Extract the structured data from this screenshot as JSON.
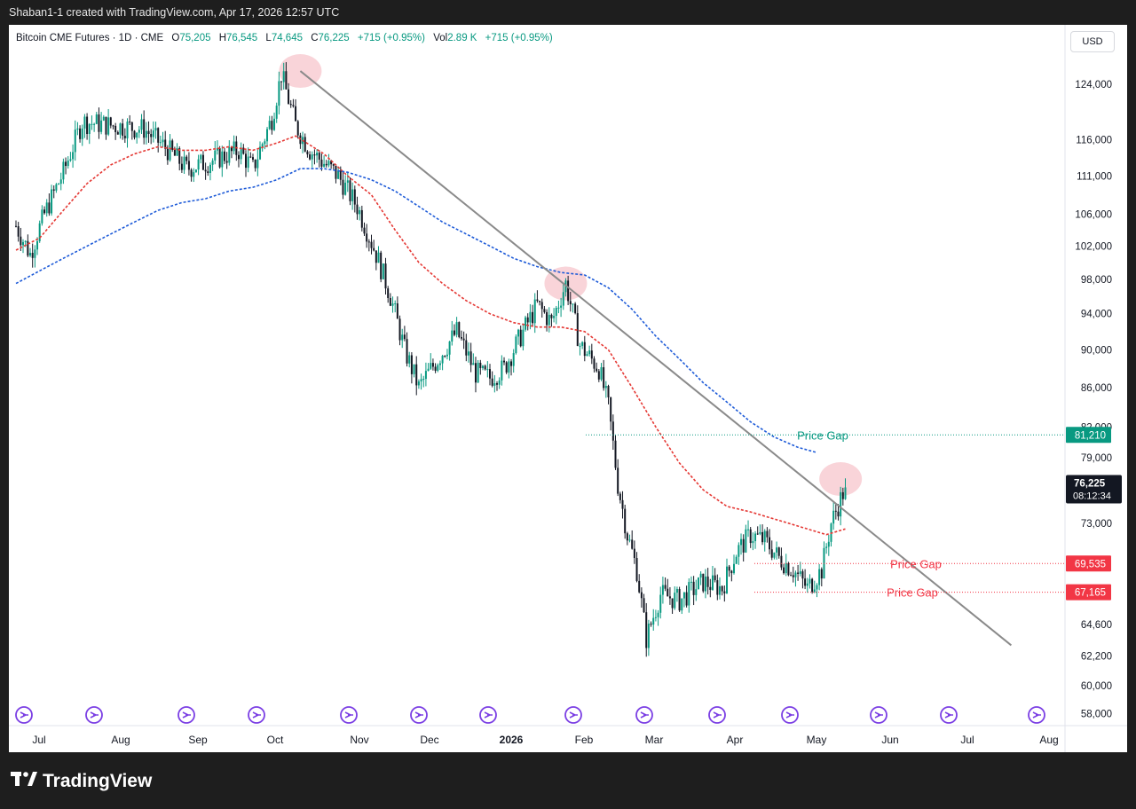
{
  "header": {
    "credit": "Shaban1-1 created with TradingView.com, Apr 17, 2026 12:57 UTC"
  },
  "legend": {
    "symbol": "Bitcoin CME Futures · 1D · CME",
    "o_label": "O",
    "o": "75,205",
    "h_label": "H",
    "h": "76,545",
    "l_label": "L",
    "l": "74,645",
    "c_label": "C",
    "c": "76,225",
    "change": "+715 (+0.95%)",
    "vol_label": "Vol",
    "vol": "2.89 K",
    "vol_change": "+715 (+0.95%)"
  },
  "currency": "USD",
  "footer": {
    "brand": "TradingView",
    "logo_icon": "tradingview-logo-icon"
  },
  "colors": {
    "up": "#089981",
    "down": "#131722",
    "ma_red": "#e53935",
    "ma_blue": "#1e5bd8",
    "trendline": "#8a8a8a",
    "gap_green": "#089981",
    "gap_red": "#f23645",
    "highlight": "#f7c6cc"
  },
  "chart_data": {
    "type": "candlestick",
    "y_scale": "log",
    "y_ticks": [
      124000,
      116000,
      111000,
      106000,
      102000,
      98000,
      94000,
      90000,
      86000,
      82000,
      79000,
      73000,
      64600,
      62200,
      60000,
      58000
    ],
    "y_tick_labels": [
      "124,000",
      "116,000",
      "111,000",
      "106,000",
      "102,000",
      "98,000",
      "94,000",
      "90,000",
      "86,000",
      "82,000",
      "79,000",
      "73,000",
      "64,600",
      "62,200",
      "60,000",
      "58,000"
    ],
    "x_tick_labels": [
      "Jul",
      "Aug",
      "Sep",
      "Oct",
      "Nov",
      "Dec",
      "2026",
      "Feb",
      "Mar",
      "Apr",
      "May",
      "Jun",
      "Jul",
      "Aug"
    ],
    "last_price": {
      "value": 76225,
      "label": "76,225",
      "countdown": "08:12:34"
    },
    "price_gaps": [
      {
        "label": "Price Gap",
        "value": 81210,
        "value_label": "81,210",
        "color": "green"
      },
      {
        "label": "Price Gap",
        "value": 69535,
        "value_label": "69,535",
        "color": "red"
      },
      {
        "label": "Price Gap",
        "value": 67165,
        "value_label": "67,165",
        "color": "red"
      }
    ],
    "series": [
      {
        "kind": "candles",
        "anchors": [
          [
            0,
            104500
          ],
          [
            6,
            101000
          ],
          [
            12,
            106000
          ],
          [
            20,
            111500
          ],
          [
            28,
            118500
          ],
          [
            40,
            118000
          ],
          [
            54,
            117500
          ],
          [
            66,
            114000
          ],
          [
            72,
            112000
          ],
          [
            82,
            113000
          ],
          [
            94,
            114500
          ],
          [
            100,
            112000
          ],
          [
            108,
            119000
          ],
          [
            112,
            125500
          ],
          [
            118,
            118000
          ],
          [
            124,
            114500
          ],
          [
            136,
            111000
          ],
          [
            144,
            107000
          ],
          [
            152,
            101000
          ],
          [
            158,
            96000
          ],
          [
            164,
            90000
          ],
          [
            170,
            86000
          ],
          [
            178,
            89000
          ],
          [
            186,
            92000
          ],
          [
            194,
            87500
          ],
          [
            200,
            87000
          ],
          [
            206,
            88000
          ],
          [
            214,
            92000
          ],
          [
            220,
            95000
          ],
          [
            226,
            93000
          ],
          [
            232,
            97500
          ],
          [
            238,
            90500
          ],
          [
            246,
            88000
          ],
          [
            250,
            84000
          ],
          [
            254,
            76500
          ],
          [
            258,
            72000
          ],
          [
            262,
            69000
          ],
          [
            266,
            63500
          ],
          [
            272,
            67000
          ],
          [
            280,
            66500
          ],
          [
            290,
            68000
          ],
          [
            298,
            67500
          ],
          [
            304,
            70500
          ],
          [
            310,
            72000
          ],
          [
            316,
            71500
          ],
          [
            322,
            70000
          ],
          [
            328,
            69000
          ],
          [
            334,
            67500
          ],
          [
            340,
            69000
          ],
          [
            344,
            73000
          ],
          [
            350,
            76225
          ]
        ]
      },
      {
        "kind": "ma",
        "name": "",
        "color": "red",
        "points": [
          [
            0,
            101500
          ],
          [
            10,
            103000
          ],
          [
            20,
            106500
          ],
          [
            30,
            110000
          ],
          [
            40,
            112500
          ],
          [
            50,
            114000
          ],
          [
            60,
            115000
          ],
          [
            70,
            114500
          ],
          [
            80,
            114500
          ],
          [
            90,
            115000
          ],
          [
            100,
            114500
          ],
          [
            110,
            115500
          ],
          [
            118,
            116500
          ],
          [
            130,
            114000
          ],
          [
            140,
            111000
          ],
          [
            150,
            108500
          ],
          [
            160,
            104000
          ],
          [
            170,
            100000
          ],
          [
            180,
            97500
          ],
          [
            190,
            95500
          ],
          [
            200,
            94000
          ],
          [
            210,
            93000
          ],
          [
            220,
            92500
          ],
          [
            230,
            92500
          ],
          [
            240,
            92000
          ],
          [
            250,
            90000
          ],
          [
            260,
            86000
          ],
          [
            270,
            82000
          ],
          [
            280,
            78500
          ],
          [
            290,
            76000
          ],
          [
            300,
            74500
          ],
          [
            310,
            74000
          ],
          [
            318,
            73500
          ],
          [
            326,
            73000
          ],
          [
            334,
            72500
          ],
          [
            342,
            72000
          ],
          [
            350,
            72500
          ]
        ]
      },
      {
        "kind": "ma",
        "name": "",
        "color": "blue",
        "points": [
          [
            0,
            97500
          ],
          [
            10,
            99000
          ],
          [
            20,
            100500
          ],
          [
            30,
            102000
          ],
          [
            40,
            103500
          ],
          [
            50,
            105000
          ],
          [
            60,
            106500
          ],
          [
            70,
            107500
          ],
          [
            80,
            108000
          ],
          [
            90,
            109000
          ],
          [
            100,
            109500
          ],
          [
            110,
            110500
          ],
          [
            120,
            112000
          ],
          [
            130,
            112000
          ],
          [
            140,
            111500
          ],
          [
            150,
            110500
          ],
          [
            160,
            109000
          ],
          [
            170,
            107000
          ],
          [
            180,
            105000
          ],
          [
            190,
            103500
          ],
          [
            200,
            102000
          ],
          [
            210,
            100500
          ],
          [
            220,
            99500
          ],
          [
            230,
            98800
          ],
          [
            240,
            98500
          ],
          [
            250,
            97000
          ],
          [
            260,
            94500
          ],
          [
            270,
            91500
          ],
          [
            280,
            89000
          ],
          [
            290,
            86500
          ],
          [
            300,
            84500
          ],
          [
            310,
            82500
          ],
          [
            320,
            81000
          ],
          [
            330,
            80000
          ],
          [
            338,
            79500
          ]
        ]
      },
      {
        "kind": "trendline",
        "points": [
          [
            120,
            126000
          ],
          [
            180,
            111800
          ],
          [
            232,
            98800
          ],
          [
            330,
            77500
          ],
          [
            420,
            63000
          ]
        ]
      }
    ],
    "highlights": [
      {
        "x": 120,
        "y": 126000
      },
      {
        "x": 232,
        "y": 97500
      },
      {
        "x": 348,
        "y": 77000
      }
    ]
  }
}
